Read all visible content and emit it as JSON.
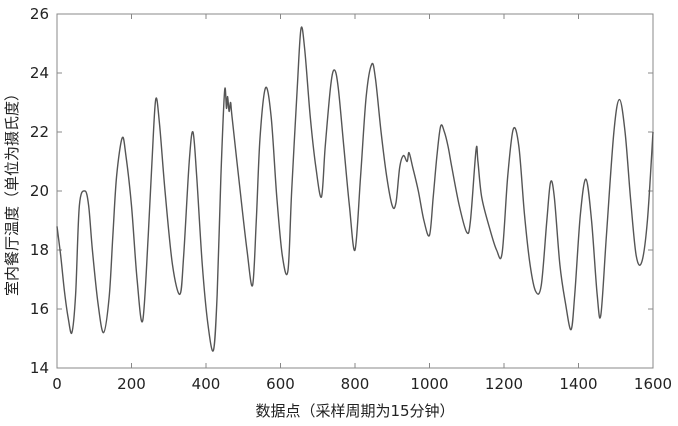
{
  "chart_data": {
    "type": "line",
    "title": "",
    "xlabel": "数据点（采样周期为15分钟）",
    "ylabel": "室内餐厅温度（单位为摄氏度）",
    "xlim": [
      0,
      1600
    ],
    "ylim": [
      14,
      26
    ],
    "x_ticks": [
      0,
      200,
      400,
      600,
      800,
      1000,
      1200,
      1400,
      1600
    ],
    "y_ticks": [
      14,
      16,
      18,
      20,
      22,
      24,
      26
    ],
    "grid": false,
    "legend": "none",
    "line_color": "#555555",
    "series": [
      {
        "x": [
          0,
          10,
          20,
          30,
          40,
          50,
          60,
          75,
          85,
          95,
          110,
          125,
          140,
          150,
          160,
          175,
          185,
          200,
          215,
          230,
          245,
          255,
          265,
          275,
          290,
          310,
          330,
          340,
          355,
          365,
          375,
          390,
          405,
          420,
          430,
          440,
          450,
          455,
          458,
          462,
          466,
          470,
          490,
          510,
          525,
          535,
          545,
          560,
          575,
          590,
          605,
          620,
          630,
          645,
          655,
          665,
          680,
          695,
          710,
          720,
          735,
          745,
          755,
          770,
          785,
          800,
          815,
          830,
          845,
          855,
          870,
          885,
          900,
          910,
          920,
          930,
          940,
          945,
          955,
          970,
          985,
          1000,
          1010,
          1020,
          1030,
          1040,
          1050,
          1060,
          1080,
          1100,
          1110,
          1125,
          1130,
          1140,
          1160,
          1180,
          1195,
          1210,
          1225,
          1240,
          1255,
          1270,
          1285,
          1300,
          1315,
          1325,
          1335,
          1350,
          1365,
          1380,
          1390,
          1405,
          1420,
          1435,
          1450,
          1460,
          1475,
          1495,
          1510,
          1525,
          1540,
          1555,
          1570,
          1585,
          1600
        ],
        "y": [
          18.8,
          17.8,
          16.6,
          15.7,
          15.2,
          16.5,
          19.5,
          20.0,
          19.5,
          18.0,
          16.2,
          15.2,
          16.4,
          18.5,
          20.5,
          21.8,
          21.2,
          19.5,
          17.0,
          15.6,
          18.5,
          21.0,
          23.1,
          22.3,
          20.0,
          17.5,
          16.5,
          17.8,
          21.0,
          22.0,
          20.5,
          17.5,
          15.5,
          14.6,
          16.5,
          20.5,
          23.4,
          22.8,
          23.2,
          22.7,
          23.0,
          22.5,
          20.2,
          18.0,
          16.8,
          19.0,
          21.8,
          23.5,
          22.5,
          19.8,
          17.8,
          17.3,
          20.0,
          23.5,
          25.5,
          24.8,
          22.5,
          20.8,
          19.8,
          21.5,
          23.6,
          24.1,
          23.5,
          21.5,
          19.5,
          18.0,
          20.5,
          23.2,
          24.3,
          23.8,
          22.0,
          20.5,
          19.5,
          19.6,
          20.8,
          21.2,
          21.0,
          21.3,
          20.8,
          20.0,
          19.0,
          18.5,
          19.8,
          21.2,
          22.2,
          22.0,
          21.5,
          20.8,
          19.5,
          18.6,
          19.0,
          21.4,
          21.0,
          19.8,
          18.8,
          18.0,
          17.9,
          20.5,
          22.1,
          21.5,
          19.2,
          17.5,
          16.6,
          16.8,
          19.0,
          20.3,
          19.8,
          17.5,
          16.2,
          15.3,
          16.5,
          19.2,
          20.4,
          19.0,
          16.5,
          15.8,
          18.5,
          22.0,
          23.1,
          22.0,
          19.7,
          17.8,
          17.6,
          19.0,
          22.0
        ]
      }
    ]
  }
}
